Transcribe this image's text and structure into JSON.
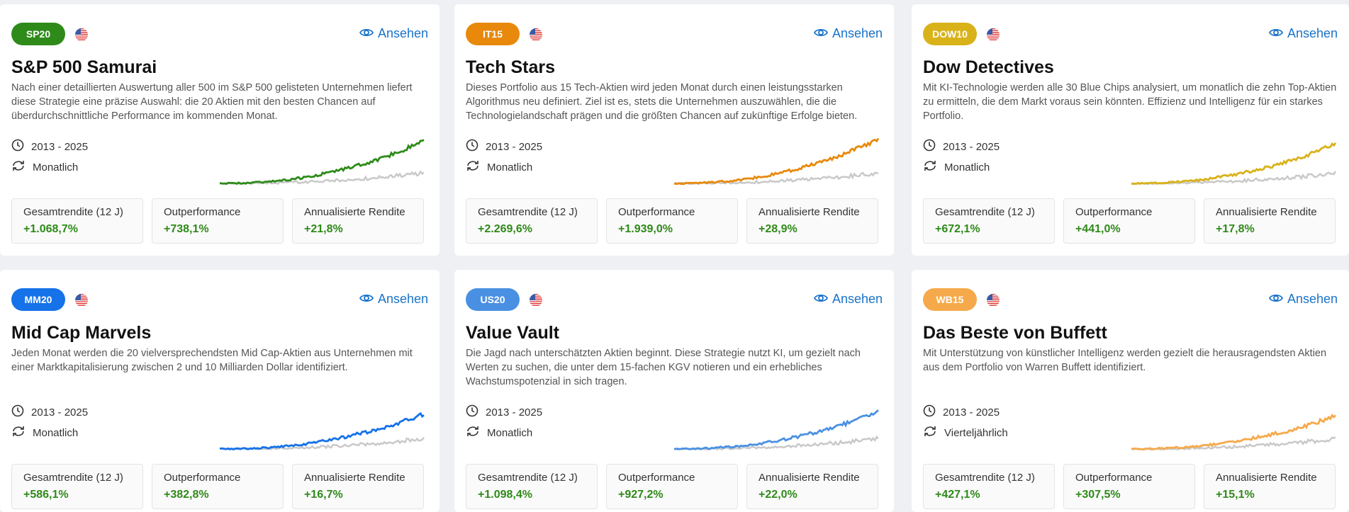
{
  "view_label": "Ansehen",
  "cards": [
    {
      "badge": "SP20",
      "badge_color": "#2e8b1a",
      "line_color": "#2e8b1a",
      "title": "S&P 500 Samurai",
      "description": "Nach einer detaillierten Auswertung aller 500 im S&P 500 gelisteten Unternehmen liefert diese Strategie eine präzise Auswahl: die 20 Aktien mit den besten Chancen auf überdurchschnittliche Performance im kommenden Monat.",
      "period": "2013 - 2025",
      "frequency": "Monatlich",
      "stats": [
        {
          "label": "Gesamtrendite (12 J)",
          "value": "+1.068,7%"
        },
        {
          "label": "Outperformance",
          "value": "+738,1%"
        },
        {
          "label": "Annualisierte Rendite",
          "value": "+21,8%"
        }
      ]
    },
    {
      "badge": "IT15",
      "badge_color": "#e8890c",
      "line_color": "#e8890c",
      "title": "Tech Stars",
      "description": "Dieses Portfolio aus 15 Tech-Aktien wird jeden Monat durch einen leistungsstarken Algorithmus neu definiert. Ziel ist es, stets die Unternehmen auszuwählen, die die Technologielandschaft prägen und die größten Chancen auf zukünftige Erfolge bieten.",
      "period": "2013 - 2025",
      "frequency": "Monatlich",
      "stats": [
        {
          "label": "Gesamtrendite (12 J)",
          "value": "+2.269,6%"
        },
        {
          "label": "Outperformance",
          "value": "+1.939,0%"
        },
        {
          "label": "Annualisierte Rendite",
          "value": "+28,9%"
        }
      ]
    },
    {
      "badge": "DOW10",
      "badge_color": "#d9b21a",
      "line_color": "#d9b21a",
      "title": "Dow Detectives",
      "description": "Mit KI-Technologie werden alle 30 Blue Chips analysiert, um monatlich die zehn Top-Aktien zu ermitteln, die dem Markt voraus sein könnten. Effizienz und Intelligenz für ein starkes Portfolio.",
      "period": "2013 - 2025",
      "frequency": "Monatlich",
      "stats": [
        {
          "label": "Gesamtrendite (12 J)",
          "value": "+672,1%"
        },
        {
          "label": "Outperformance",
          "value": "+441,0%"
        },
        {
          "label": "Annualisierte Rendite",
          "value": "+17,8%"
        }
      ]
    },
    {
      "badge": "MM20",
      "badge_color": "#1572e8",
      "line_color": "#1572e8",
      "title": "Mid Cap Marvels",
      "description": "Jeden Monat werden die 20 vielversprechendsten Mid Cap-Aktien aus Unternehmen mit einer Marktkapitalisierung zwischen 2 und 10 Milliarden Dollar identifiziert.",
      "period": "2013 - 2025",
      "frequency": "Monatlich",
      "stats": [
        {
          "label": "Gesamtrendite (12 J)",
          "value": "+586,1%"
        },
        {
          "label": "Outperformance",
          "value": "+382,8%"
        },
        {
          "label": "Annualisierte Rendite",
          "value": "+16,7%"
        }
      ]
    },
    {
      "badge": "US20",
      "badge_color": "#4a90e2",
      "line_color": "#4a90e2",
      "title": "Value Vault",
      "description": "Die Jagd nach unterschätzten Aktien beginnt. Diese Strategie nutzt KI, um gezielt nach Werten zu suchen, die unter dem 15-fachen KGV notieren und ein erhebliches Wachstumspotenzial in sich tragen.",
      "period": "2013 - 2025",
      "frequency": "Monatlich",
      "stats": [
        {
          "label": "Gesamtrendite (12 J)",
          "value": "+1.098,4%"
        },
        {
          "label": "Outperformance",
          "value": "+927,2%"
        },
        {
          "label": "Annualisierte Rendite",
          "value": "+22,0%"
        }
      ]
    },
    {
      "badge": "WB15",
      "badge_color": "#f6a94a",
      "line_color": "#f6a94a",
      "title": "Das Beste von Buffett",
      "description": "Mit Unterstützung von künstlicher Intelligenz werden gezielt die herausragendsten Aktien aus dem Portfolio von Warren Buffett identifiziert.",
      "period": "2013 - 2025",
      "frequency": "Vierteljährlich",
      "stats": [
        {
          "label": "Gesamtrendite (12 J)",
          "value": "+427,1%"
        },
        {
          "label": "Outperformance",
          "value": "+307,5%"
        },
        {
          "label": "Annualisierte Rendite",
          "value": "+15,1%"
        }
      ]
    }
  ]
}
